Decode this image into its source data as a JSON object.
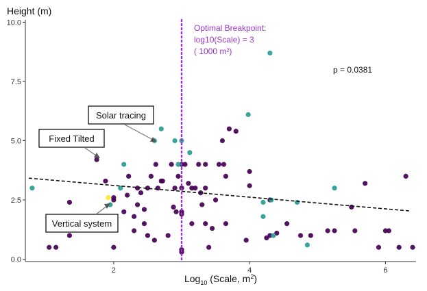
{
  "chart_data": {
    "type": "scatter",
    "title": "",
    "xlabel": "Log",
    "xlabel_sub": "10",
    "xlabel_tail": " (Scale, m",
    "xlabel_sup": "2",
    "xlabel_end": ")",
    "ylabel": "Height (m)",
    "xlim": [
      0.7,
      6.45
    ],
    "ylim": [
      -0.1,
      10.1
    ],
    "x_ticks": [
      2,
      4,
      6
    ],
    "x_tick_labels": [
      "2",
      "4",
      "6"
    ],
    "y_ticks": [
      0,
      2.5,
      5,
      7.5,
      10
    ],
    "y_tick_labels": [
      "0.0",
      "2.5",
      "5.0",
      "7.5",
      "10.0"
    ],
    "grid": false,
    "legend": "none",
    "colors": {
      "purple": "#440154",
      "teal": "#2a9d95",
      "yellow": "#fde725",
      "breakpoint": "#9a35c8",
      "trend": "#111111"
    },
    "series": [
      {
        "color": "purple",
        "points": [
          [
            1.05,
            0.5
          ],
          [
            1.15,
            0.5
          ],
          [
            1.35,
            1.0
          ],
          [
            1.35,
            2.4
          ],
          [
            1.75,
            4.2
          ],
          [
            1.88,
            3.3
          ],
          [
            2.0,
            2.5
          ],
          [
            2.0,
            2.6
          ],
          [
            2.0,
            0.5
          ],
          [
            2.15,
            2.0
          ],
          [
            2.2,
            2.7
          ],
          [
            2.22,
            3.5
          ],
          [
            2.3,
            1.2
          ],
          [
            2.3,
            1.8
          ],
          [
            2.35,
            3.0
          ],
          [
            2.35,
            2.3
          ],
          [
            2.4,
            2.8
          ],
          [
            2.45,
            2.1
          ],
          [
            2.45,
            1.5
          ],
          [
            2.5,
            1.0
          ],
          [
            2.5,
            3.0
          ],
          [
            2.55,
            3.5
          ],
          [
            2.6,
            0.8
          ],
          [
            2.62,
            4.0
          ],
          [
            2.65,
            3.0
          ],
          [
            2.7,
            3.3
          ],
          [
            2.72,
            3.3
          ],
          [
            2.8,
            1.0
          ],
          [
            2.85,
            4.0
          ],
          [
            2.88,
            2.2
          ],
          [
            2.9,
            3.0
          ],
          [
            2.92,
            2.0
          ],
          [
            2.95,
            3.5
          ],
          [
            3.0,
            3.0
          ],
          [
            3.0,
            4.0
          ],
          [
            3.0,
            2.0
          ],
          [
            3.0,
            1.9
          ],
          [
            3.0,
            0.4
          ],
          [
            3.0,
            0.3
          ],
          [
            3.05,
            4.0
          ],
          [
            3.1,
            3.2
          ],
          [
            3.15,
            1.5
          ],
          [
            3.15,
            3.0
          ],
          [
            3.2,
            3.0
          ],
          [
            3.25,
            4.0
          ],
          [
            3.28,
            2.8
          ],
          [
            3.3,
            2.3
          ],
          [
            3.35,
            4.0
          ],
          [
            3.35,
            1.5
          ],
          [
            3.35,
            3.0
          ],
          [
            3.4,
            0.5
          ],
          [
            3.45,
            1.3
          ],
          [
            3.5,
            2.5
          ],
          [
            3.55,
            4.0
          ],
          [
            3.6,
            5.0
          ],
          [
            3.62,
            4.0
          ],
          [
            3.65,
            3.5
          ],
          [
            3.65,
            1.5
          ],
          [
            3.7,
            5.5
          ],
          [
            3.8,
            5.4
          ],
          [
            3.95,
            0.8
          ],
          [
            4.0,
            3.7
          ],
          [
            4.0,
            3.1
          ],
          [
            4.25,
            0.9
          ],
          [
            4.3,
            1.0
          ],
          [
            4.3,
            2.5
          ],
          [
            4.4,
            1.1
          ],
          [
            4.55,
            1.5
          ],
          [
            4.75,
            1.0
          ],
          [
            4.9,
            1.0
          ],
          [
            5.15,
            1.2
          ],
          [
            5.25,
            1.2
          ],
          [
            5.5,
            2.2
          ],
          [
            5.55,
            1.2
          ],
          [
            5.7,
            3.2
          ],
          [
            5.9,
            0.5
          ],
          [
            6.0,
            1.2
          ],
          [
            6.05,
            1.2
          ],
          [
            6.2,
            0.5
          ],
          [
            6.3,
            3.5
          ],
          [
            6.4,
            0.5
          ]
        ]
      },
      {
        "color": "teal",
        "points": [
          [
            0.8,
            3.0
          ],
          [
            1.95,
            2.3
          ],
          [
            2.1,
            3.0
          ],
          [
            2.15,
            4.0
          ],
          [
            2.6,
            5.0
          ],
          [
            2.7,
            5.5
          ],
          [
            2.9,
            5.0
          ],
          [
            2.95,
            4.0
          ],
          [
            3.0,
            5.0
          ],
          [
            3.12,
            4.5
          ],
          [
            3.98,
            6.1
          ],
          [
            4.2,
            2.4
          ],
          [
            4.2,
            1.8
          ],
          [
            4.3,
            8.7
          ],
          [
            4.32,
            2.5
          ],
          [
            4.35,
            1.0
          ],
          [
            4.7,
            2.4
          ],
          [
            4.85,
            0.6
          ],
          [
            5.25,
            3.0
          ]
        ]
      },
      {
        "color": "yellow",
        "points": [
          [
            1.92,
            2.6
          ]
        ]
      }
    ],
    "trendline": {
      "style": "dashed",
      "x": [
        0.75,
        6.38
      ],
      "y": [
        3.42,
        2.03
      ]
    },
    "breakpoint": {
      "style": "dotted",
      "x": 3.0
    },
    "annotations": {
      "breakpoint_lines": [
        "Optimal Breakpoint:",
        "log10(Scale) = 3",
        "( 1000 m²)"
      ],
      "p_value": "p = 0.0381"
    },
    "callouts": [
      {
        "label": "Solar tracing",
        "target": [
          2.55,
          5.1
        ]
      },
      {
        "label": "Fixed Tilted",
        "target": [
          1.72,
          4.2
        ]
      },
      {
        "label": "Vertical system",
        "target": [
          1.87,
          2.45
        ]
      }
    ]
  }
}
